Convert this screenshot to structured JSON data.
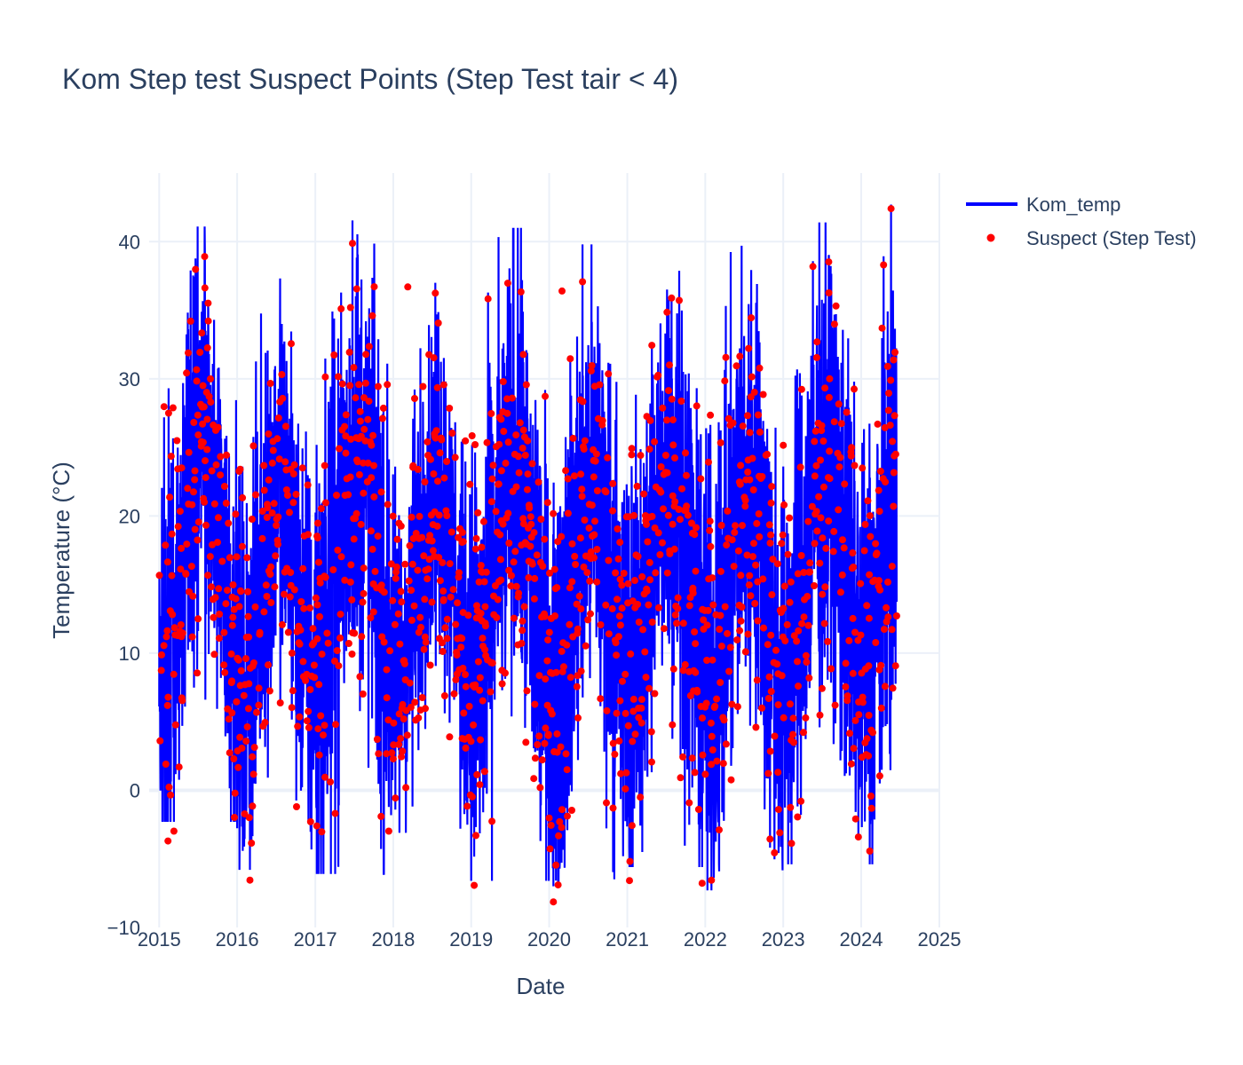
{
  "chart_data": {
    "type": "line",
    "title": "Kom Step test Suspect Points (Step Test tair < 4)",
    "xlabel": "Date",
    "ylabel": "Temperature (°C)",
    "xlim": [
      "2014-11-15",
      "2025-01-01"
    ],
    "ylim": [
      -10,
      45
    ],
    "x_ticks": [
      "2015",
      "2016",
      "2017",
      "2018",
      "2019",
      "2020",
      "2021",
      "2022",
      "2023",
      "2024",
      "2025"
    ],
    "y_ticks": [
      -10,
      0,
      10,
      20,
      30,
      40
    ],
    "y_tick_labels": [
      "−10",
      "0",
      "10",
      "20",
      "30",
      "40"
    ],
    "grid": true,
    "legend_position": "top-right",
    "date_range": [
      "2015-01-01",
      "2024-06-15"
    ],
    "series": [
      {
        "name": "Kom_temp",
        "type": "line",
        "color": "#0000ff",
        "description": "daily air temperature, seasonal cycle with winter lows near -5 and summer highs near 40",
        "seasonal_profile": [
          {
            "year": 2015,
            "min": -2.3,
            "max": 41.1
          },
          {
            "year": 2016,
            "min": -5.8,
            "max": 37.5
          },
          {
            "year": 2017,
            "min": -6.1,
            "max": 42.9
          },
          {
            "year": 2018,
            "min": -3.1,
            "max": 37.0
          },
          {
            "year": 2019,
            "min": -6.6,
            "max": 41.0
          },
          {
            "year": 2020,
            "min": -7.0,
            "max": 39.8
          },
          {
            "year": 2021,
            "min": -5.6,
            "max": 40.4
          },
          {
            "year": 2022,
            "min": -7.3,
            "max": 39.7
          },
          {
            "year": 2023,
            "min": -5.4,
            "max": 41.4
          },
          {
            "year": 2024,
            "min": -5.4,
            "max": 42.7
          }
        ]
      },
      {
        "name": "Suspect (Step Test)",
        "type": "scatter",
        "color": "#ff0000",
        "description": "points flagged by step test, spread across the full temperature cycle",
        "notable_points": [
          {
            "x": "2015-01-05",
            "y": 3.6
          },
          {
            "x": "2018-03-10",
            "y": 36.7
          },
          {
            "x": "2020-03-01",
            "y": 36.4
          },
          {
            "x": "2017-06-15",
            "y": 35.2
          },
          {
            "x": "2024-04-15",
            "y": 38.3
          },
          {
            "x": "2016-10-05",
            "y": -1.2
          },
          {
            "x": "2022-12-10",
            "y": -1.4
          },
          {
            "x": "2019-11-20",
            "y": 0.2
          }
        ]
      }
    ]
  }
}
